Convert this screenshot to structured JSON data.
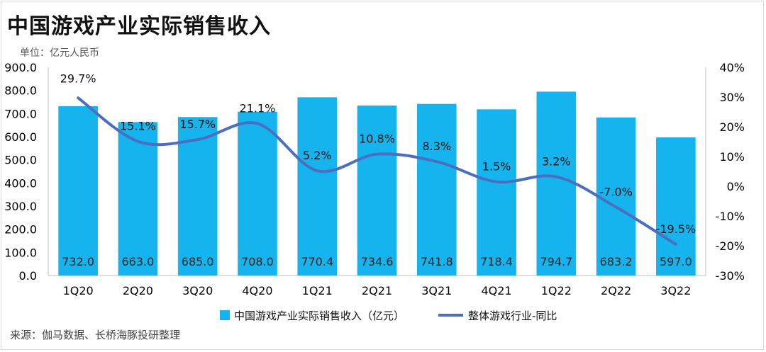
{
  "title": "中国游戏产业实际销售收入",
  "unit": "单位：亿元人民币",
  "source": "来源：伽马数据、长桥海豚投研整理",
  "colors": {
    "bar": "#16b4ee",
    "line": "#4a6fc0"
  },
  "chart_data": {
    "type": "bar",
    "categories": [
      "1Q20",
      "2Q20",
      "3Q20",
      "4Q20",
      "1Q21",
      "2Q21",
      "3Q21",
      "4Q21",
      "1Q22",
      "2Q22",
      "3Q22"
    ],
    "series": [
      {
        "name": "中国游戏产业实际销售收入（亿元）",
        "type": "bar",
        "axis": "left",
        "values": [
          732.0,
          663.0,
          685.0,
          708.0,
          770.4,
          734.6,
          741.8,
          718.4,
          794.7,
          683.2,
          597.0
        ],
        "labels": [
          "732.0",
          "663.0",
          "685.0",
          "708.0",
          "770.4",
          "734.6",
          "741.8",
          "718.4",
          "794.7",
          "683.2",
          "597.0"
        ]
      },
      {
        "name": "整体游戏行业-同比",
        "type": "line",
        "axis": "right",
        "values": [
          29.7,
          15.1,
          15.7,
          21.1,
          5.2,
          10.8,
          8.3,
          1.5,
          3.2,
          -7.0,
          -19.5
        ],
        "labels": [
          "29.7%",
          "15.1%",
          "15.7%",
          "21.1%",
          "5.2%",
          "10.8%",
          "8.3%",
          "1.5%",
          "3.2%",
          "-7.0%",
          "-19.5%"
        ]
      }
    ],
    "ylim_left": [
      0,
      900
    ],
    "ylim_right": [
      -30,
      40
    ],
    "left_ticks": [
      "0.0",
      "100.0",
      "200.0",
      "300.0",
      "400.0",
      "500.0",
      "600.0",
      "700.0",
      "800.0",
      "900.0"
    ],
    "right_ticks": [
      "-30%",
      "-20%",
      "-10%",
      "0%",
      "10%",
      "20%",
      "30%",
      "40%"
    ],
    "legend_position": "bottom",
    "grid": false
  }
}
